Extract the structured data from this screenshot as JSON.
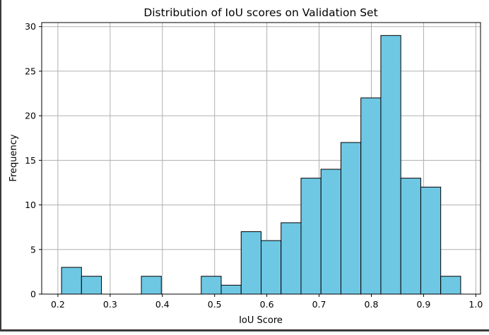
{
  "chart_data": {
    "type": "bar",
    "title": "Distribution of IoU scores on Validation Set",
    "xlabel": "IoU Score",
    "ylabel": "Frequency",
    "bins": [
      {
        "start": 0.207,
        "end": 0.2452,
        "value": 3
      },
      {
        "start": 0.2452,
        "end": 0.2834,
        "value": 2
      },
      {
        "start": 0.2834,
        "end": 0.3216,
        "value": 0
      },
      {
        "start": 0.3216,
        "end": 0.3598,
        "value": 0
      },
      {
        "start": 0.3598,
        "end": 0.398,
        "value": 2
      },
      {
        "start": 0.398,
        "end": 0.4362,
        "value": 0
      },
      {
        "start": 0.4362,
        "end": 0.4744,
        "value": 0
      },
      {
        "start": 0.4744,
        "end": 0.5126,
        "value": 2
      },
      {
        "start": 0.5126,
        "end": 0.5508,
        "value": 1
      },
      {
        "start": 0.5508,
        "end": 0.589,
        "value": 7
      },
      {
        "start": 0.589,
        "end": 0.6272,
        "value": 6
      },
      {
        "start": 0.6272,
        "end": 0.6654,
        "value": 8
      },
      {
        "start": 0.6654,
        "end": 0.7036,
        "value": 13
      },
      {
        "start": 0.7036,
        "end": 0.7418,
        "value": 14
      },
      {
        "start": 0.7418,
        "end": 0.78,
        "value": 17
      },
      {
        "start": 0.78,
        "end": 0.8182,
        "value": 22
      },
      {
        "start": 0.8182,
        "end": 0.8564,
        "value": 29
      },
      {
        "start": 0.8564,
        "end": 0.8946,
        "value": 13
      },
      {
        "start": 0.8946,
        "end": 0.9328,
        "value": 12
      },
      {
        "start": 0.9328,
        "end": 0.971,
        "value": 2
      }
    ],
    "xlim": [
      0.169,
      1.009
    ],
    "ylim": [
      0,
      30.45
    ],
    "xticks": [
      0.2,
      0.3,
      0.4,
      0.5,
      0.6,
      0.7,
      0.8,
      0.9,
      1.0
    ],
    "xtick_labels": [
      "0.2",
      "0.3",
      "0.4",
      "0.5",
      "0.6",
      "0.7",
      "0.8",
      "0.9",
      "1.0"
    ],
    "yticks": [
      0,
      5,
      10,
      15,
      20,
      25,
      30
    ],
    "ytick_labels": [
      "0",
      "5",
      "10",
      "15",
      "20",
      "25",
      "30"
    ],
    "grid": true,
    "colors": {
      "bar_fill": "#6ec8e4",
      "bar_edge": "#000000",
      "grid": "#b0b0b0"
    }
  }
}
